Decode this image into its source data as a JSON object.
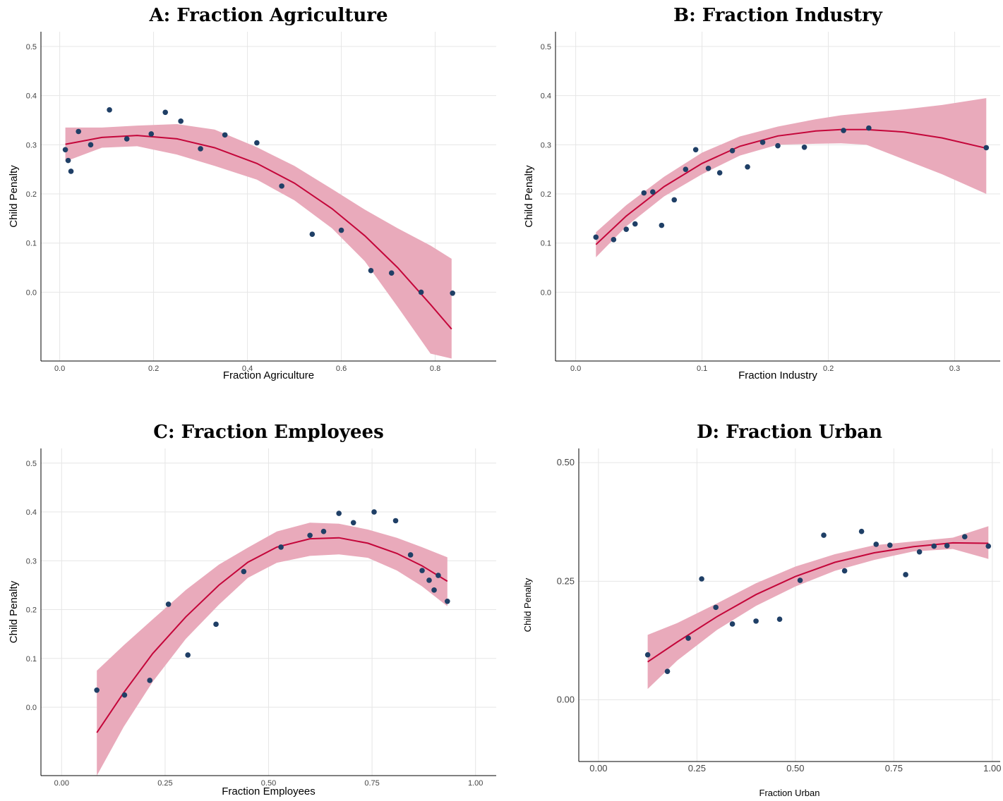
{
  "chart_data": [
    {
      "type": "scatter",
      "title": "A: Fraction Agriculture",
      "xlabel": "Fraction Agriculture",
      "ylabel": "Child Penalty",
      "xlim": [
        -0.04,
        0.93
      ],
      "ylim": [
        -0.14,
        0.53
      ],
      "xticks": [
        0.0,
        0.2,
        0.4,
        0.6,
        0.8
      ],
      "xtick_labels": [
        "0.0",
        "0.2",
        "0.4",
        "0.6",
        "0.8"
      ],
      "yticks": [
        0.0,
        0.1,
        0.2,
        0.3,
        0.4,
        0.5
      ],
      "ytick_labels": [
        "0.0",
        "0.1",
        "0.2",
        "0.3",
        "0.4",
        "0.5"
      ],
      "grid": true,
      "points": {
        "x": [
          0.012,
          0.018,
          0.024,
          0.04,
          0.066,
          0.106,
          0.143,
          0.195,
          0.225,
          0.258,
          0.3,
          0.352,
          0.42,
          0.473,
          0.538,
          0.6,
          0.663,
          0.707,
          0.77,
          0.837
        ],
        "y": [
          0.29,
          0.268,
          0.246,
          0.327,
          0.3,
          0.371,
          0.312,
          0.322,
          0.366,
          0.348,
          0.292,
          0.32,
          0.304,
          0.216,
          0.118,
          0.126,
          0.044,
          0.039,
          0.0,
          -0.002
        ]
      },
      "fit": {
        "x": [
          0.012,
          0.09,
          0.165,
          0.25,
          0.33,
          0.42,
          0.5,
          0.58,
          0.65,
          0.72,
          0.79,
          0.835
        ],
        "y": [
          0.301,
          0.315,
          0.319,
          0.312,
          0.294,
          0.262,
          0.222,
          0.17,
          0.115,
          0.05,
          -0.025,
          -0.075
        ],
        "ci_upper": [
          0.335,
          0.335,
          0.339,
          0.342,
          0.331,
          0.295,
          0.257,
          0.21,
          0.168,
          0.13,
          0.095,
          0.068
        ],
        "ci_lower": [
          0.266,
          0.294,
          0.297,
          0.28,
          0.257,
          0.229,
          0.187,
          0.13,
          0.063,
          -0.03,
          -0.125,
          -0.135
        ]
      }
    },
    {
      "type": "scatter",
      "title": "B: Fraction Industry",
      "xlabel": "Fraction Industry",
      "ylabel": "Child Penalty",
      "xlim": [
        -0.016,
        0.336
      ],
      "ylim": [
        -0.14,
        0.53
      ],
      "xticks": [
        0.0,
        0.1,
        0.2,
        0.3
      ],
      "xtick_labels": [
        "0.0",
        "0.1",
        "0.2",
        "0.3"
      ],
      "yticks": [
        0.0,
        0.1,
        0.2,
        0.3,
        0.4,
        0.5
      ],
      "ytick_labels": [
        "0.0",
        "0.1",
        "0.2",
        "0.3",
        "0.4",
        "0.5"
      ],
      "grid": true,
      "points": {
        "x": [
          0.016,
          0.03,
          0.04,
          0.047,
          0.054,
          0.061,
          0.068,
          0.078,
          0.087,
          0.095,
          0.105,
          0.114,
          0.124,
          0.136,
          0.148,
          0.16,
          0.181,
          0.212,
          0.232,
          0.325
        ],
        "y": [
          0.112,
          0.107,
          0.128,
          0.139,
          0.202,
          0.204,
          0.136,
          0.188,
          0.25,
          0.29,
          0.252,
          0.243,
          0.288,
          0.255,
          0.305,
          0.298,
          0.295,
          0.329,
          0.334,
          0.294
        ]
      },
      "fit": {
        "x": [
          0.016,
          0.04,
          0.07,
          0.1,
          0.13,
          0.16,
          0.19,
          0.21,
          0.23,
          0.26,
          0.29,
          0.325
        ],
        "y": [
          0.097,
          0.155,
          0.215,
          0.262,
          0.297,
          0.318,
          0.328,
          0.331,
          0.331,
          0.326,
          0.314,
          0.293
        ],
        "ci_upper": [
          0.122,
          0.177,
          0.235,
          0.284,
          0.317,
          0.337,
          0.352,
          0.36,
          0.365,
          0.372,
          0.381,
          0.395
        ],
        "ci_lower": [
          0.071,
          0.134,
          0.195,
          0.24,
          0.278,
          0.3,
          0.302,
          0.303,
          0.3,
          0.27,
          0.24,
          0.2
        ]
      }
    },
    {
      "type": "scatter",
      "title": "C: Fraction Employees",
      "xlabel": "Fraction Employees",
      "ylabel": "Child Penalty",
      "xlim": [
        -0.05,
        1.05
      ],
      "ylim": [
        -0.14,
        0.53
      ],
      "xticks": [
        0.0,
        0.25,
        0.5,
        0.75,
        1.0
      ],
      "xtick_labels": [
        "0.00",
        "0.25",
        "0.50",
        "0.75",
        "1.00"
      ],
      "yticks": [
        0.0,
        0.1,
        0.2,
        0.3,
        0.4,
        0.5
      ],
      "ytick_labels": [
        "0.0",
        "0.1",
        "0.2",
        "0.3",
        "0.4",
        "0.5"
      ],
      "grid": true,
      "points": {
        "x": [
          0.085,
          0.152,
          0.213,
          0.258,
          0.305,
          0.373,
          0.44,
          0.53,
          0.6,
          0.633,
          0.67,
          0.705,
          0.755,
          0.807,
          0.843,
          0.871,
          0.888,
          0.9,
          0.91,
          0.932
        ],
        "y": [
          0.035,
          0.025,
          0.055,
          0.211,
          0.107,
          0.17,
          0.278,
          0.328,
          0.352,
          0.36,
          0.397,
          0.378,
          0.4,
          0.382,
          0.312,
          0.28,
          0.26,
          0.24,
          0.27,
          0.217
        ]
      },
      "fit": {
        "x": [
          0.085,
          0.15,
          0.22,
          0.3,
          0.38,
          0.45,
          0.52,
          0.6,
          0.67,
          0.74,
          0.81,
          0.87,
          0.932
        ],
        "y": [
          -0.052,
          0.03,
          0.11,
          0.185,
          0.25,
          0.297,
          0.328,
          0.345,
          0.347,
          0.336,
          0.315,
          0.29,
          0.258
        ],
        "ci_upper": [
          0.075,
          0.127,
          0.18,
          0.24,
          0.292,
          0.327,
          0.36,
          0.378,
          0.376,
          0.364,
          0.347,
          0.328,
          0.307
        ],
        "ci_lower": [
          -0.14,
          -0.04,
          0.052,
          0.14,
          0.21,
          0.265,
          0.296,
          0.31,
          0.313,
          0.306,
          0.28,
          0.248,
          0.207
        ]
      }
    },
    {
      "type": "scatter",
      "title": "D: Fraction Urban",
      "xlabel": "Fraction Urban",
      "ylabel": "Child Penalty",
      "xlim": [
        -0.05,
        1.02
      ],
      "ylim": [
        -0.13,
        0.53
      ],
      "xticks": [
        0.0,
        0.25,
        0.5,
        0.75,
        1.0
      ],
      "xtick_labels": [
        "0.00",
        "0.25",
        "0.50",
        "0.75",
        "1.00"
      ],
      "yticks": [
        0.0,
        0.25,
        0.5
      ],
      "ytick_labels": [
        "0.00",
        "0.25",
        "0.50"
      ],
      "grid": true,
      "points": {
        "x": [
          0.125,
          0.175,
          0.228,
          0.262,
          0.298,
          0.34,
          0.4,
          0.46,
          0.512,
          0.572,
          0.625,
          0.668,
          0.705,
          0.74,
          0.78,
          0.815,
          0.852,
          0.885,
          0.93,
          0.99
        ],
        "y": [
          0.095,
          0.06,
          0.13,
          0.255,
          0.195,
          0.16,
          0.166,
          0.17,
          0.252,
          0.347,
          0.272,
          0.355,
          0.328,
          0.326,
          0.264,
          0.312,
          0.324,
          0.325,
          0.344,
          0.324
        ]
      },
      "fit": {
        "x": [
          0.125,
          0.2,
          0.3,
          0.4,
          0.5,
          0.6,
          0.7,
          0.8,
          0.9,
          0.99
        ],
        "y": [
          0.08,
          0.122,
          0.175,
          0.222,
          0.26,
          0.29,
          0.31,
          0.323,
          0.331,
          0.33
        ],
        "ci_upper": [
          0.137,
          0.162,
          0.203,
          0.246,
          0.281,
          0.307,
          0.326,
          0.334,
          0.342,
          0.366
        ],
        "ci_lower": [
          0.023,
          0.083,
          0.147,
          0.198,
          0.239,
          0.272,
          0.295,
          0.313,
          0.318,
          0.297
        ]
      }
    }
  ]
}
